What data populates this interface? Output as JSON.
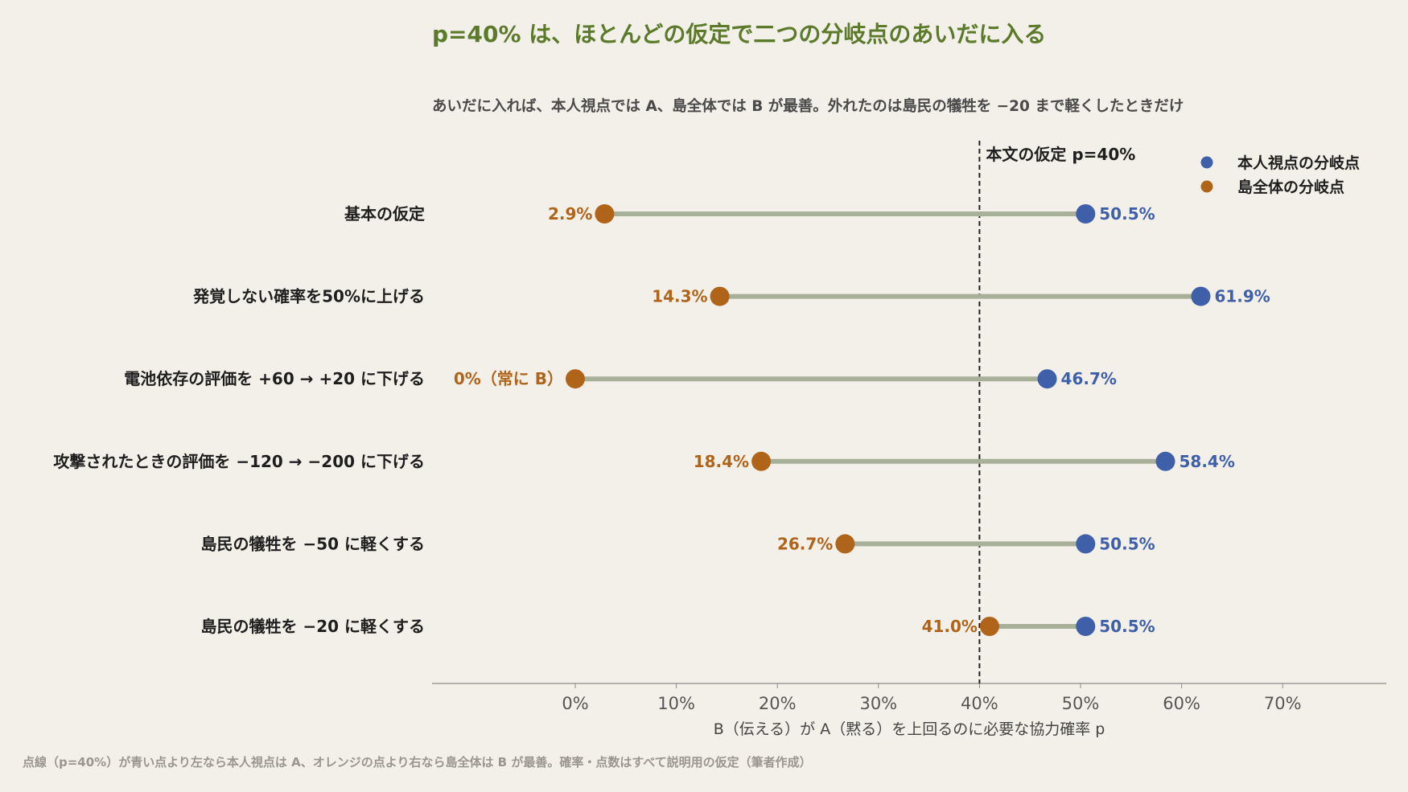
{
  "colors": {
    "background": "#f3f0ea",
    "title": "#5b7a2a",
    "subtitle": "#4a4a4a",
    "individual": "#3f5fa8",
    "island": "#b0641a",
    "connector": "#a9b09a",
    "axis": "#8a8a8a"
  },
  "chart_data": {
    "type": "dumbbell",
    "title": "p=40% は、ほとんどの仮定で二つの分岐点のあいだに入る",
    "subtitle": "あいだに入れば、本人視点では A、島全体では B が最善。外れたのは島民の犠牲を −20 まで軽くしたときだけ",
    "xlabel": "B（伝える）が A（黙る）を上回るのに必要な協力確率 p",
    "xlim": [
      -14,
      80
    ],
    "xticks": [
      0,
      10,
      20,
      30,
      40,
      50,
      60,
      70
    ],
    "xtick_labels": [
      "0%",
      "10%",
      "20%",
      "30%",
      "40%",
      "50%",
      "60%",
      "70%"
    ],
    "reference_line": {
      "value": 40,
      "label": "本文の仮定 p=40%"
    },
    "legend": [
      {
        "name": "本人視点の分岐点",
        "color_key": "individual"
      },
      {
        "name": "島全体の分岐点",
        "color_key": "island"
      }
    ],
    "legend_position": "top-right",
    "grid": false,
    "categories": [
      "基本の仮定",
      "発覚しない確率を50%に上げる",
      "電池依存の評価を +60 → +20 に下げる",
      "攻撃されたときの評価を −120 → −200 に下げる",
      "島民の犠牲を −50 に軽くする",
      "島民の犠牲を −20 に軽くする"
    ],
    "series": [
      {
        "name": "本人視点の分岐点",
        "values": [
          50.5,
          61.9,
          46.7,
          58.4,
          50.5,
          50.5
        ],
        "labels": [
          "50.5%",
          "61.9%",
          "46.7%",
          "58.4%",
          "50.5%",
          "50.5%"
        ]
      },
      {
        "name": "島全体の分岐点",
        "values": [
          2.9,
          14.3,
          0,
          18.4,
          26.7,
          41.0
        ],
        "labels": [
          "2.9%",
          "14.3%",
          "0%（常に B）",
          "18.4%",
          "26.7%",
          "41.0%"
        ]
      }
    ]
  },
  "footnote": "点線（p=40%）が青い点より左なら本人視点は A、オレンジの点より右なら島全体は B が最善。確率・点数はすべて説明用の仮定（筆者作成）"
}
